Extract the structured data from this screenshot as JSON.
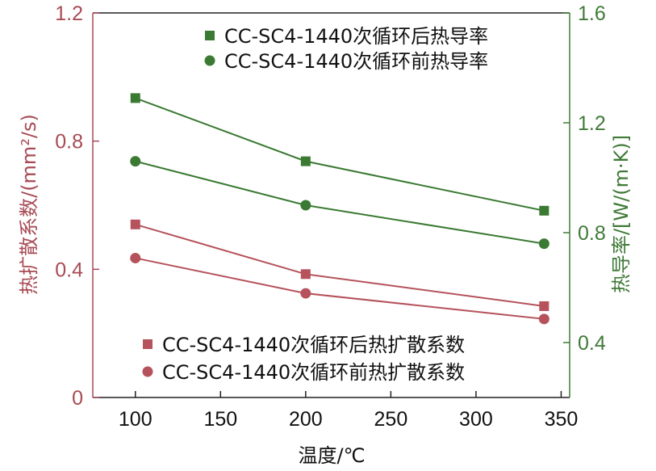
{
  "chart_data": {
    "type": "line",
    "x": [
      100,
      200,
      340
    ],
    "xlabel": "温度/℃",
    "xlim": [
      75,
      355
    ],
    "xticks": [
      100,
      150,
      200,
      250,
      300,
      350
    ],
    "ylabel_left": "热扩散系数/(mm²/s)",
    "ylim_left": [
      0,
      1.2
    ],
    "yticks_left": [
      "0",
      "0.4",
      "0.8",
      "1.2"
    ],
    "ylabel_right": "热导率/[W/(m·K)]",
    "ylim_right": [
      0.2,
      1.6
    ],
    "yticks_right": [
      "0.4",
      "0.8",
      "1.2",
      "1.6"
    ],
    "grid": false,
    "series": [
      {
        "name": "CC-SC4-1440次循环后热导率",
        "axis": "right",
        "marker": "square",
        "color": "#3a7a32",
        "values": [
          1.29,
          1.06,
          0.88
        ]
      },
      {
        "name": "CC-SC4-1440次循环前热导率",
        "axis": "right",
        "marker": "circle",
        "color": "#3a7a32",
        "values": [
          1.06,
          0.9,
          0.76
        ]
      },
      {
        "name": "CC-SC4-1440次循环后热扩散系数",
        "axis": "left",
        "marker": "square",
        "color": "#b5525b",
        "values": [
          0.54,
          0.385,
          0.285
        ]
      },
      {
        "name": "CC-SC4-1440次循环前热扩散系数",
        "axis": "left",
        "marker": "circle",
        "color": "#b5525b",
        "values": [
          0.435,
          0.325,
          0.245
        ]
      }
    ],
    "legends": [
      {
        "placement": "top-right",
        "series": [
          0,
          1
        ]
      },
      {
        "placement": "bottom-right",
        "series": [
          2,
          3
        ]
      }
    ],
    "colors": {
      "left_axis": "#a84b55",
      "right_axis": "#3f7a37",
      "frame": "#222222"
    }
  }
}
